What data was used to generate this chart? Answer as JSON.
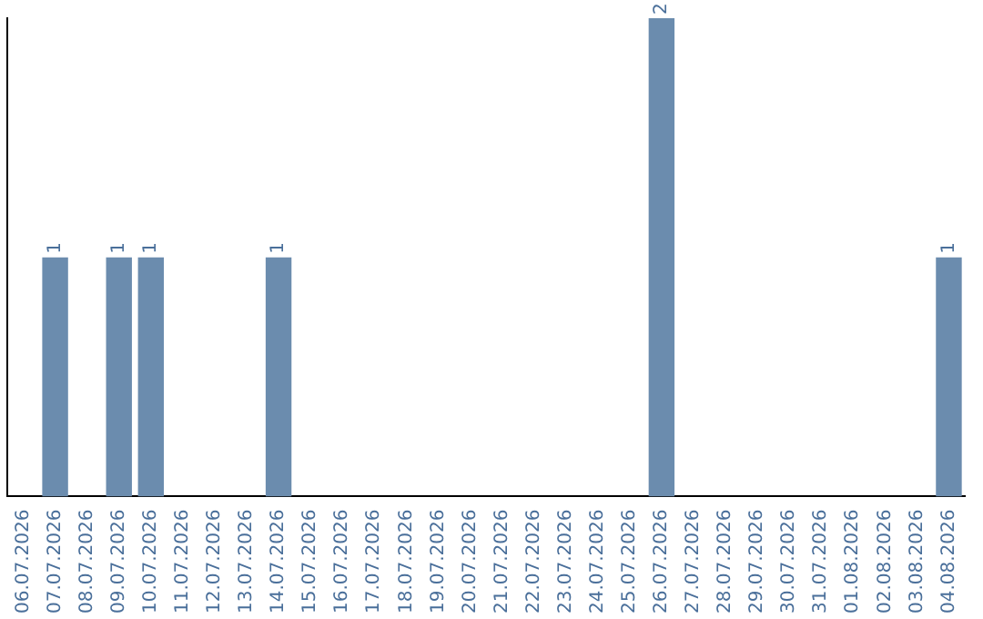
{
  "chart_data": {
    "type": "bar",
    "categories": [
      "06.07.2026",
      "07.07.2026",
      "08.07.2026",
      "09.07.2026",
      "10.07.2026",
      "11.07.2026",
      "12.07.2026",
      "13.07.2026",
      "14.07.2026",
      "15.07.2026",
      "16.07.2026",
      "17.07.2026",
      "18.07.2026",
      "19.07.2026",
      "20.07.2026",
      "21.07.2026",
      "22.07.2026",
      "23.07.2026",
      "24.07.2026",
      "25.07.2026",
      "26.07.2026",
      "27.07.2026",
      "28.07.2026",
      "29.07.2026",
      "30.07.2026",
      "31.07.2026",
      "01.08.2026",
      "02.08.2026",
      "03.08.2026",
      "04.08.2026"
    ],
    "values": [
      0,
      1,
      0,
      1,
      1,
      0,
      0,
      0,
      1,
      0,
      0,
      0,
      0,
      0,
      0,
      0,
      0,
      0,
      0,
      0,
      2,
      0,
      0,
      0,
      0,
      0,
      0,
      0,
      0,
      1
    ],
    "value_labels": [
      null,
      "1",
      null,
      "1",
      "1",
      null,
      null,
      null,
      "1",
      null,
      null,
      null,
      null,
      null,
      null,
      null,
      null,
      null,
      null,
      null,
      "2",
      null,
      null,
      null,
      null,
      null,
      null,
      null,
      null,
      "1"
    ],
    "color": "#6b8cae",
    "grid": false,
    "tick_labels": "x",
    "legend": false
  }
}
